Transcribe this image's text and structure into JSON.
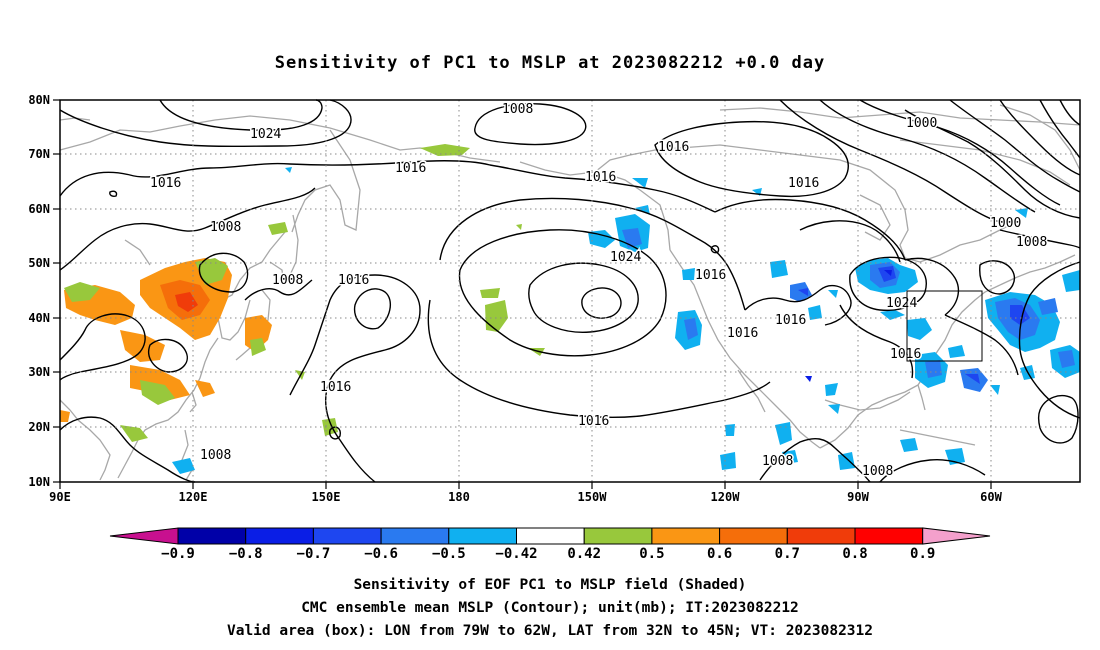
{
  "title": "Sensitivity of PC1 to MSLP at 2023082212 +0.0 day",
  "lat_ticks": [
    "80N",
    "70N",
    "60N",
    "50N",
    "40N",
    "30N",
    "20N",
    "10N"
  ],
  "lon_ticks": [
    "90E",
    "120E",
    "150E",
    "180",
    "150W",
    "120W",
    "90W",
    "60W"
  ],
  "colorbar": {
    "ticks": [
      "-0.9",
      "-0.8",
      "-0.7",
      "-0.6",
      "-0.5",
      "-0.42",
      "0.42",
      "0.5",
      "0.6",
      "0.7",
      "0.8",
      "0.9"
    ],
    "colors": {
      "below_min": "#c8108f",
      "bins": [
        "#0000a8",
        "#0a1ee6",
        "#1e46f0",
        "#2a7af0",
        "#10b0f0",
        "#ffffff",
        "#98c83c",
        "#fa9614",
        "#f56e0a",
        "#f03c0a",
        "#ff0000"
      ],
      "above_max": "#f4a0cc"
    }
  },
  "contour_labels": [
    {
      "text": "1008"
    },
    {
      "text": "1024"
    },
    {
      "text": "1016"
    },
    {
      "text": "1016"
    },
    {
      "text": "1016"
    },
    {
      "text": "1016"
    },
    {
      "text": "1000"
    },
    {
      "text": "1008"
    },
    {
      "text": "1000"
    },
    {
      "text": "1016"
    },
    {
      "text": "1008"
    },
    {
      "text": "1008"
    },
    {
      "text": "1016"
    },
    {
      "text": "1024"
    },
    {
      "text": "1016"
    },
    {
      "text": "1016"
    },
    {
      "text": "1016"
    },
    {
      "text": "1024"
    },
    {
      "text": "1016"
    },
    {
      "text": "1016"
    },
    {
      "text": "1016"
    },
    {
      "text": "1008"
    },
    {
      "text": "1008"
    },
    {
      "text": "1008"
    }
  ],
  "captions": {
    "line1": "Sensitivity of EOF PC1 to MSLP field (Shaded)",
    "line2": "CMC ensemble mean MSLP (Contour); unit(mb); IT:2023082212",
    "line3": "Valid area (box): LON from 79W to 62W, LAT from 32N to 45N; VT: 2023082312"
  },
  "valid_box": {
    "lon_min": "79W",
    "lon_max": "62W",
    "lat_min": "32N",
    "lat_max": "45N"
  }
}
